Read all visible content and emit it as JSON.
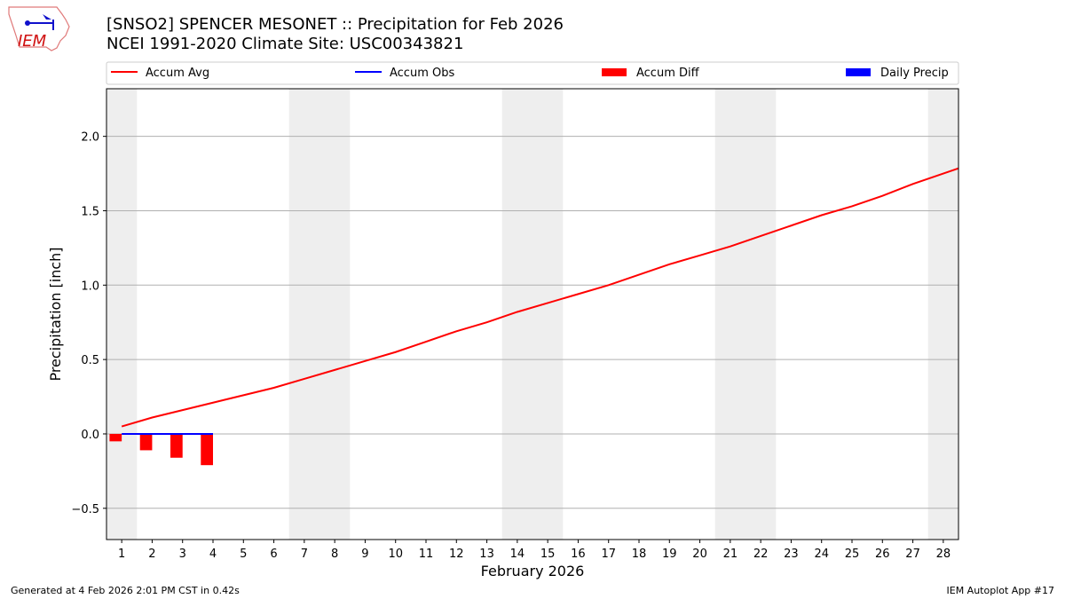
{
  "header": {
    "logo_text": "IEM",
    "title_line1": "[SNSO2] SPENCER MESONET :: Precipitation for Feb 2026",
    "title_line2": "NCEI 1991-2020 Climate Site: USC00343821"
  },
  "footer": {
    "left": "Generated at 4 Feb 2026 2:01 PM CST in 0.42s",
    "right": "IEM Autoplot App #17"
  },
  "chart_data": {
    "type": "line",
    "xlabel": "February 2026",
    "ylabel": "Precipitation [inch]",
    "xlim": [
      0.5,
      28.5
    ],
    "ylim": [
      -0.71,
      2.32
    ],
    "x_ticks": [
      1,
      2,
      3,
      4,
      5,
      6,
      7,
      8,
      9,
      10,
      11,
      12,
      13,
      14,
      15,
      16,
      17,
      18,
      19,
      20,
      21,
      22,
      23,
      24,
      25,
      26,
      27,
      28
    ],
    "y_ticks": [
      -0.5,
      0.0,
      0.5,
      1.0,
      1.5,
      2.0
    ],
    "y_tick_labels": [
      "−0.5",
      "0.0",
      "0.5",
      "1.0",
      "1.5",
      "2.0"
    ],
    "grid": "horizontal",
    "legend_placement": "top",
    "weekend_shading_days": [
      1,
      7,
      8,
      14,
      15,
      21,
      22,
      28
    ],
    "legend": [
      {
        "name": "Accum Avg",
        "kind": "line",
        "color": "#ff0000"
      },
      {
        "name": "Accum Obs",
        "kind": "line",
        "color": "#0000ff"
      },
      {
        "name": "Accum Diff",
        "kind": "bar",
        "color": "#ff0000"
      },
      {
        "name": "Daily Precip",
        "kind": "bar",
        "color": "#0000ff"
      }
    ],
    "series": [
      {
        "name": "Accum Avg",
        "color": "#ff0000",
        "x": [
          1,
          2,
          3,
          4,
          5,
          6,
          7,
          8,
          9,
          10,
          11,
          12,
          13,
          14,
          15,
          16,
          17,
          18,
          19,
          20,
          21,
          22,
          23,
          24,
          25,
          26,
          27,
          28,
          29
        ],
        "values": [
          0.05,
          0.11,
          0.16,
          0.21,
          0.26,
          0.31,
          0.37,
          0.43,
          0.49,
          0.55,
          0.62,
          0.69,
          0.75,
          0.82,
          0.88,
          0.94,
          1.0,
          1.07,
          1.14,
          1.2,
          1.26,
          1.33,
          1.4,
          1.47,
          1.53,
          1.6,
          1.68,
          1.75,
          1.82
        ]
      },
      {
        "name": "Accum Obs",
        "color": "#0000ff",
        "x": [
          1,
          2,
          3,
          4
        ],
        "values": [
          0,
          0,
          0,
          0
        ]
      },
      {
        "name": "Accum Diff",
        "color": "#ff0000",
        "x": [
          1,
          2,
          3,
          4
        ],
        "values": [
          -0.05,
          -0.11,
          -0.16,
          -0.21
        ]
      },
      {
        "name": "Daily Precip",
        "color": "#0000ff",
        "x": [
          1,
          2,
          3,
          4
        ],
        "values": [
          0,
          0,
          0,
          0
        ]
      }
    ]
  }
}
